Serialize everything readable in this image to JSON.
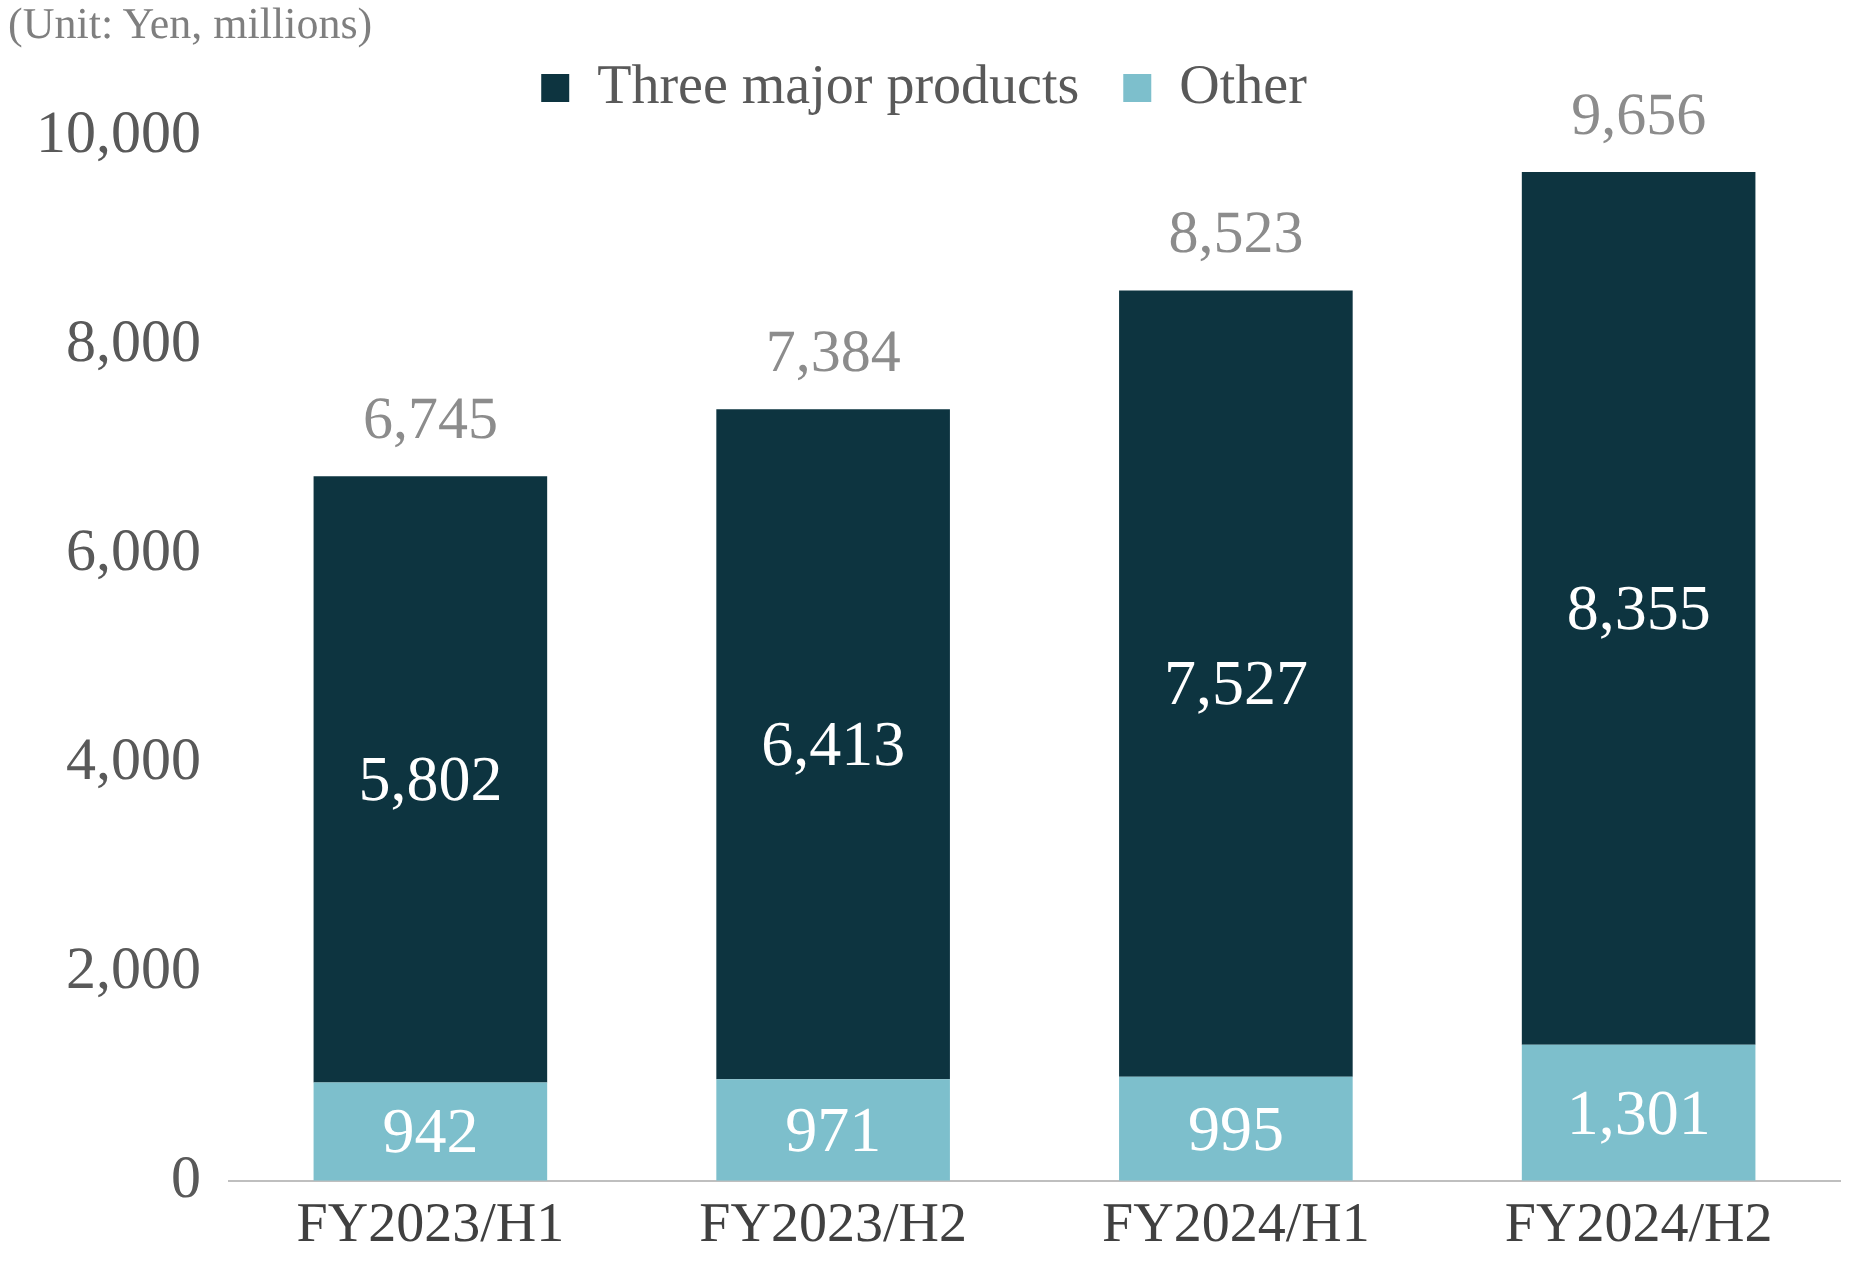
{
  "chart_data": {
    "type": "bar",
    "stacked": true,
    "categories": [
      "FY2023/H1",
      "FY2023/H2",
      "FY2024/H1",
      "FY2024/H2"
    ],
    "series": [
      {
        "name": "Other",
        "color": "#7dbfcc",
        "values": [
          942,
          971,
          995,
          1301
        ],
        "value_labels": [
          "942",
          "971",
          "995",
          "1,301"
        ]
      },
      {
        "name": "Three major products",
        "color": "#0d3440",
        "values": [
          5802,
          6413,
          7527,
          8355
        ],
        "value_labels": [
          "5,802",
          "6,413",
          "7,527",
          "8,355"
        ]
      }
    ],
    "totals": [
      "6,745",
      "7,384",
      "8,523",
      "9,656"
    ],
    "ylim": [
      0,
      10000
    ],
    "yticks": [
      0,
      {
        "value": 2000,
        "label": "2,000"
      },
      {
        "value": 4000,
        "label": "4,000"
      },
      {
        "value": 6000,
        "label": "6,000"
      },
      {
        "value": 8000,
        "label": "8,000"
      },
      {
        "value": 10000,
        "label": "10,000"
      }
    ],
    "grid": false,
    "legend": "top",
    "annotations": [
      "(Unit: Yen, millions)"
    ]
  }
}
